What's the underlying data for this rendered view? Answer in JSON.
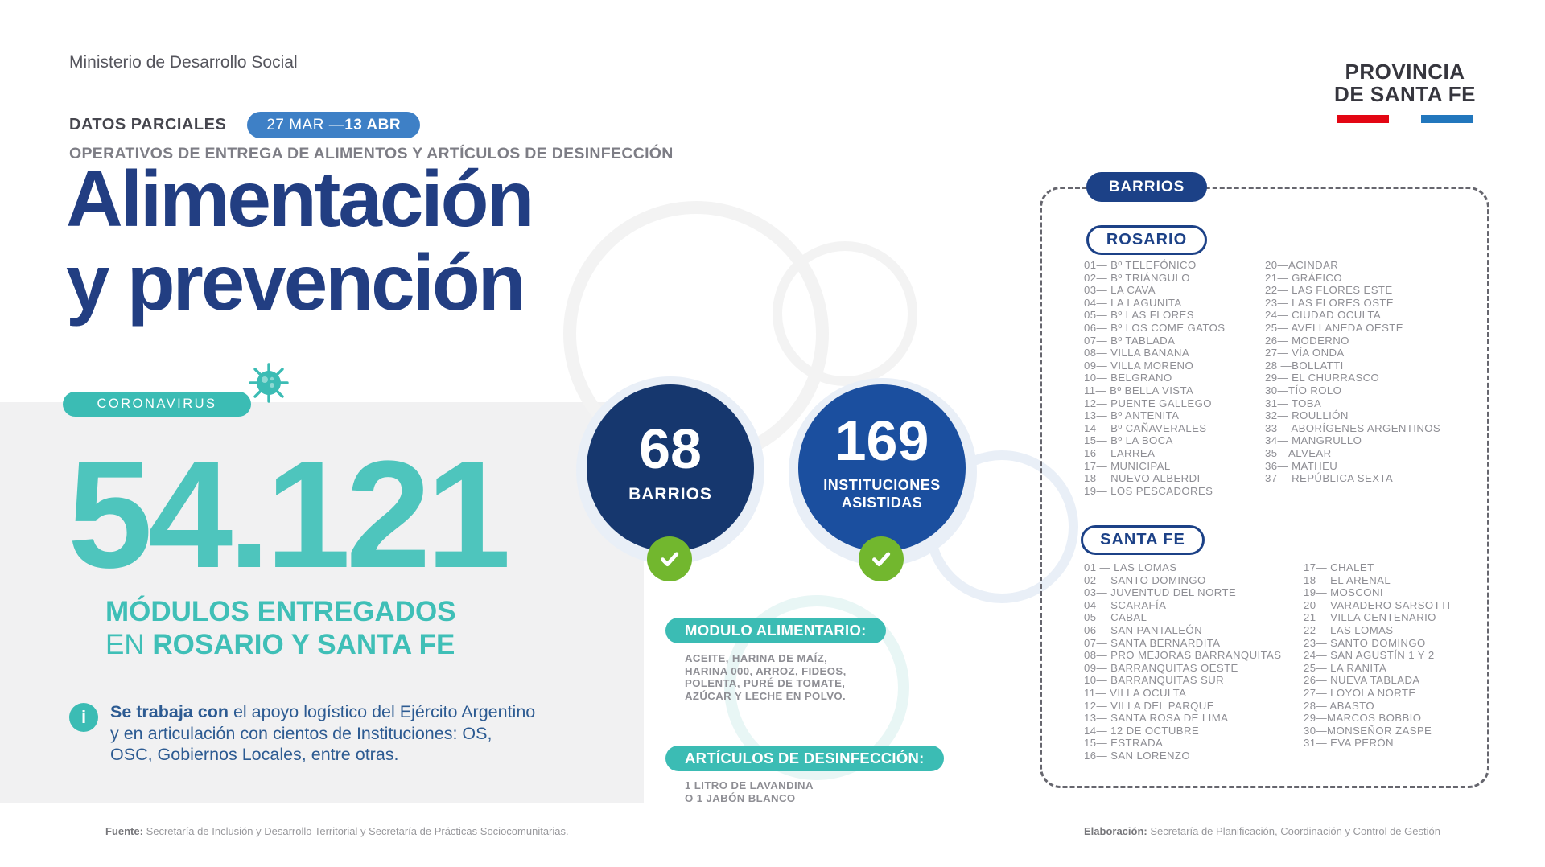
{
  "header": {
    "ministry": "Ministerio de Desarrollo Social",
    "logo_line1": "PROVINCIA",
    "logo_line2": "DE SANTA FE",
    "partial_label": "DATOS PARCIALES",
    "date_regular": "27 MAR — ",
    "date_bold": "13 ABR",
    "subtitle": "OPERATIVOS DE ENTREGA DE ALIMENTOS Y ARTÍCULOS DE DESINFECCIÓN",
    "title_line1": "Alimentación",
    "title_line2": "y prevención"
  },
  "stats": {
    "coronavirus_badge": "CORONAVIRUS",
    "modules_number": "54.121",
    "modules_label_line1": "MÓDULOS ENTREGADOS",
    "modules_label_line2_thin": "EN ",
    "modules_label_line2_bold": "ROSARIO Y SANTA FE",
    "info_glyph": "i",
    "info_bold": "Se trabaja con",
    "info_rest": " el apoyo logístico del Ejército Argentino y en articulación con cientos de Instituciones: OS, OSC, Gobiernos Locales, entre otras.",
    "circle_barrios": {
      "value": "68",
      "label": "BARRIOS"
    },
    "circle_instituciones": {
      "value": "169",
      "label_line1": "INSTITUCIONES",
      "label_line2": "ASISTIDAS"
    }
  },
  "modulo_alimentario": {
    "badge": "MODULO ALIMENTARIO:",
    "lines": [
      "ACEITE, HARINA DE MAÍZ,",
      "HARINA 000, ARROZ, FIDEOS,",
      "POLENTA, PURÉ DE TOMATE,",
      "AZÚCAR Y LECHE EN POLVO."
    ]
  },
  "articulos_desinfeccion": {
    "badge": "ARTÍCULOS DE DESINFECCIÓN:",
    "lines": [
      "1 LITRO DE LAVANDINA",
      "O  1 JABÓN BLANCO"
    ]
  },
  "barrios_panel": {
    "title": "BARRIOS",
    "rosario": {
      "title": "ROSARIO",
      "col1": [
        "01— Bº TELEFÓNICO",
        "02— Bº TRIÁNGULO",
        "03— LA CAVA",
        "04— LA LAGUNITA",
        "05— Bº LAS FLORES",
        "06— Bº LOS COME GATOS",
        "07— Bº TABLADA",
        "08— VILLA BANANA",
        "09— VILLA MORENO",
        "10— BELGRANO",
        "11—  Bº BELLA VISTA",
        "12— PUENTE GALLEGO",
        "13— Bº ANTENITA",
        "14— Bº CAÑAVERALES",
        "15— Bº LA BOCA",
        "16— LARREA",
        "17— MUNICIPAL",
        "18— NUEVO ALBERDI",
        "19— LOS PESCADORES"
      ],
      "col2": [
        "20—ACINDAR",
        "21— GRÁFICO",
        "22— LAS FLORES ESTE",
        "23— LAS FLORES OSTE",
        "24— CIUDAD OCULTA",
        "25— AVELLANEDA OESTE",
        "26— MODERNO",
        "27— VÍA ONDA",
        "28 —BOLLATTI",
        "29— EL CHURRASCO",
        "30—TÍO ROLO",
        "31— TOBA",
        "32— ROULLIÓN",
        "33— ABORÍGENES ARGENTINOS",
        "34— MANGRULLO",
        "35—ALVEAR",
        "36— MATHEU",
        "37— REPÚBLICA SEXTA"
      ]
    },
    "santafe": {
      "title": "SANTA FE",
      "col1": [
        "01 — LAS LOMAS",
        "02— SANTO DOMINGO",
        "03— JUVENTUD DEL NORTE",
        "04— SCARAFÍA",
        "05— CABAL",
        "06— SAN PANTALEÓN",
        "07— SANTA BERNARDITA",
        "08— PRO MEJORAS BARRANQUITAS",
        "09— BARRANQUITAS OESTE",
        "10— BARRANQUITAS SUR",
        "11—  VILLA OCULTA",
        "12— VILLA DEL PARQUE",
        "13— SANTA ROSA DE LIMA",
        "14— 12 DE OCTUBRE",
        "15— ESTRADA",
        "16— SAN LORENZO"
      ],
      "col2": [
        "17— CHALET",
        "18— EL ARENAL",
        "19— MOSCONI",
        "20— VARADERO SARSOTTI",
        "21— VILLA CENTENARIO",
        "22— LAS LOMAS",
        "23— SANTO DOMINGO",
        "24— SAN AGUSTÍN 1 Y 2",
        "25— LA RANITA",
        "26— NUEVA TABLADA",
        "27— LOYOLA NORTE",
        "28— ABASTO",
        "29—MARCOS BOBBIO",
        "30—MONSEÑOR ZASPE",
        "31— EVA PERÓN"
      ]
    }
  },
  "footer": {
    "left_bold": "Fuente:",
    "left_rest": " Secretaría de Inclusión y Desarrollo Territorial y Secretaría de Prácticas Sociocomunitarias.",
    "right_bold": "Elaboración:",
    "right_rest": " Secretaría de Planificación, Coordinación y Control de Gestión"
  },
  "colors": {
    "title_navy": "#223e82",
    "teal": "#3bbcb4",
    "number_teal": "#4ec5bd",
    "date_badge_blue": "#3e80c6",
    "circle_left_navy": "#16376e",
    "circle_right_blue": "#1b4f9f",
    "panel_badge_navy": "#1c4187",
    "check_green": "#72b72e",
    "flag_red": "#e30613",
    "flag_blue": "#2277bd"
  }
}
